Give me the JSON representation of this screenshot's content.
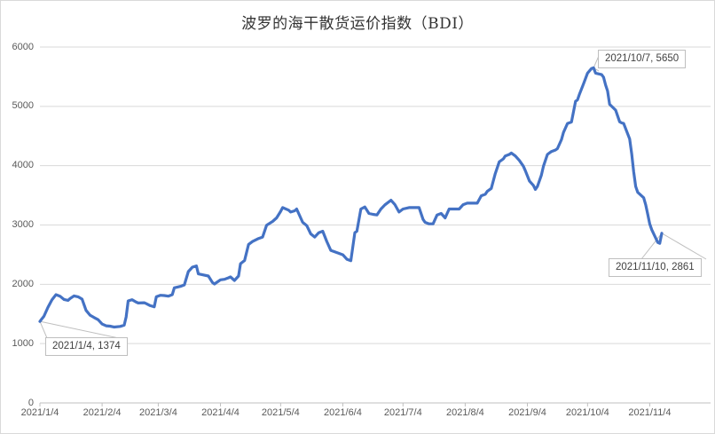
{
  "chart": {
    "line_color": "#4472C4",
    "grid_color": "#D9D9D9",
    "axis_color": "#BFBFBF",
    "tick_label_color": "#595959",
    "annotation_border_color": "#BFBFBF",
    "background": "#FFFFFF"
  },
  "chart_data": {
    "type": "line",
    "title": "波罗的海干散货运价指数（BDI）",
    "xlabel": "",
    "ylabel": "",
    "ylim": [
      0,
      6000
    ],
    "y_ticks": [
      0,
      1000,
      2000,
      3000,
      4000,
      5000,
      6000
    ],
    "x_tick_labels": [
      "2021/1/4",
      "2021/2/4",
      "2021/3/4",
      "2021/4/4",
      "2021/5/4",
      "2021/6/4",
      "2021/7/4",
      "2021/8/4",
      "2021/9/4",
      "2021/10/4",
      "2021/11/4"
    ],
    "x_range": [
      "2021/1/4",
      "2021/11/10"
    ],
    "grid": "horizontal",
    "legend": "none",
    "annotations": [
      {
        "date": "2021/1/4",
        "value": 1374,
        "label": "2021/1/4, 1374"
      },
      {
        "date": "2021/10/7",
        "value": 5650,
        "label": "2021/10/7, 5650"
      },
      {
        "date": "2021/11/10",
        "value": 2861,
        "label": "2021/11/10, 2861"
      }
    ],
    "series": [
      {
        "name": "BDI",
        "points": [
          [
            "2021/1/4",
            1374
          ],
          [
            "2021/1/5",
            1420
          ],
          [
            "2021/1/6",
            1460
          ],
          [
            "2021/1/8",
            1610
          ],
          [
            "2021/1/10",
            1740
          ],
          [
            "2021/1/12",
            1825
          ],
          [
            "2021/1/14",
            1800
          ],
          [
            "2021/1/16",
            1745
          ],
          [
            "2021/1/18",
            1730
          ],
          [
            "2021/1/19",
            1760
          ],
          [
            "2021/1/21",
            1805
          ],
          [
            "2021/1/23",
            1790
          ],
          [
            "2021/1/25",
            1750
          ],
          [
            "2021/1/27",
            1560
          ],
          [
            "2021/1/29",
            1480
          ],
          [
            "2021/1/31",
            1440
          ],
          [
            "2021/2/2",
            1403
          ],
          [
            "2021/2/4",
            1330
          ],
          [
            "2021/2/6",
            1300
          ],
          [
            "2021/2/8",
            1295
          ],
          [
            "2021/2/10",
            1280
          ],
          [
            "2021/2/13",
            1290
          ],
          [
            "2021/2/15",
            1310
          ],
          [
            "2021/2/16",
            1450
          ],
          [
            "2021/2/17",
            1720
          ],
          [
            "2021/2/19",
            1740
          ],
          [
            "2021/2/21",
            1700
          ],
          [
            "2021/2/22",
            1685
          ],
          [
            "2021/2/25",
            1690
          ],
          [
            "2021/2/26",
            1675
          ],
          [
            "2021/2/28",
            1640
          ],
          [
            "2021/3/2",
            1620
          ],
          [
            "2021/3/3",
            1790
          ],
          [
            "2021/3/5",
            1815
          ],
          [
            "2021/3/7",
            1810
          ],
          [
            "2021/3/9",
            1800
          ],
          [
            "2021/3/11",
            1825
          ],
          [
            "2021/3/12",
            1940
          ],
          [
            "2021/3/15",
            1965
          ],
          [
            "2021/3/17",
            1990
          ],
          [
            "2021/3/19",
            2215
          ],
          [
            "2021/3/21",
            2290
          ],
          [
            "2021/3/23",
            2310
          ],
          [
            "2021/3/24",
            2175
          ],
          [
            "2021/3/26",
            2160
          ],
          [
            "2021/3/29",
            2140
          ],
          [
            "2021/3/31",
            2030
          ],
          [
            "2021/4/1",
            2005
          ],
          [
            "2021/4/4",
            2075
          ],
          [
            "2021/4/6",
            2085
          ],
          [
            "2021/4/8",
            2110
          ],
          [
            "2021/4/9",
            2124
          ],
          [
            "2021/4/11",
            2065
          ],
          [
            "2021/4/13",
            2140
          ],
          [
            "2021/4/14",
            2348
          ],
          [
            "2021/4/16",
            2402
          ],
          [
            "2021/4/18",
            2672
          ],
          [
            "2021/4/20",
            2721
          ],
          [
            "2021/4/23",
            2772
          ],
          [
            "2021/4/25",
            2796
          ],
          [
            "2021/4/27",
            2995
          ],
          [
            "2021/4/30",
            3060
          ],
          [
            "2021/5/2",
            3119
          ],
          [
            "2021/5/4",
            3230
          ],
          [
            "2021/5/5",
            3294
          ],
          [
            "2021/5/8",
            3250
          ],
          [
            "2021/5/9",
            3219
          ],
          [
            "2021/5/11",
            3240
          ],
          [
            "2021/5/12",
            3269
          ],
          [
            "2021/5/15",
            3045
          ],
          [
            "2021/5/17",
            2990
          ],
          [
            "2021/5/19",
            2850
          ],
          [
            "2021/5/21",
            2796
          ],
          [
            "2021/5/23",
            2870
          ],
          [
            "2021/5/25",
            2896
          ],
          [
            "2021/5/27",
            2721
          ],
          [
            "2021/5/29",
            2572
          ],
          [
            "2021/5/31",
            2547
          ],
          [
            "2021/6/2",
            2522
          ],
          [
            "2021/6/4",
            2497
          ],
          [
            "2021/6/6",
            2423
          ],
          [
            "2021/6/8",
            2398
          ],
          [
            "2021/6/10",
            2870
          ],
          [
            "2021/6/11",
            2896
          ],
          [
            "2021/6/13",
            3269
          ],
          [
            "2021/6/15",
            3304
          ],
          [
            "2021/6/17",
            3194
          ],
          [
            "2021/6/19",
            3180
          ],
          [
            "2021/6/21",
            3169
          ],
          [
            "2021/6/23",
            3269
          ],
          [
            "2021/6/25",
            3340
          ],
          [
            "2021/6/28",
            3418
          ],
          [
            "2021/6/30",
            3343
          ],
          [
            "2021/7/2",
            3219
          ],
          [
            "2021/7/4",
            3269
          ],
          [
            "2021/7/7",
            3294
          ],
          [
            "2021/7/9",
            3294
          ],
          [
            "2021/7/12",
            3294
          ],
          [
            "2021/7/14",
            3095
          ],
          [
            "2021/7/15",
            3045
          ],
          [
            "2021/7/17",
            3020
          ],
          [
            "2021/7/19",
            3020
          ],
          [
            "2021/7/21",
            3169
          ],
          [
            "2021/7/23",
            3194
          ],
          [
            "2021/7/25",
            3119
          ],
          [
            "2021/7/27",
            3269
          ],
          [
            "2021/7/30",
            3269
          ],
          [
            "2021/8/1",
            3269
          ],
          [
            "2021/8/3",
            3343
          ],
          [
            "2021/8/5",
            3368
          ],
          [
            "2021/8/7",
            3368
          ],
          [
            "2021/8/10",
            3368
          ],
          [
            "2021/8/12",
            3493
          ],
          [
            "2021/8/14",
            3518
          ],
          [
            "2021/8/15",
            3567
          ],
          [
            "2021/8/17",
            3617
          ],
          [
            "2021/8/19",
            3866
          ],
          [
            "2021/8/21",
            4065
          ],
          [
            "2021/8/23",
            4115
          ],
          [
            "2021/8/24",
            4164
          ],
          [
            "2021/8/26",
            4189
          ],
          [
            "2021/8/27",
            4213
          ],
          [
            "2021/8/29",
            4164
          ],
          [
            "2021/8/31",
            4090
          ],
          [
            "2021/9/2",
            3990
          ],
          [
            "2021/9/3",
            3915
          ],
          [
            "2021/9/5",
            3742
          ],
          [
            "2021/9/7",
            3667
          ],
          [
            "2021/9/8",
            3600
          ],
          [
            "2021/9/9",
            3650
          ],
          [
            "2021/9/11",
            3841
          ],
          [
            "2021/9/12",
            3990
          ],
          [
            "2021/9/14",
            4189
          ],
          [
            "2021/9/16",
            4239
          ],
          [
            "2021/9/18",
            4264
          ],
          [
            "2021/9/19",
            4289
          ],
          [
            "2021/9/21",
            4438
          ],
          [
            "2021/9/22",
            4560
          ],
          [
            "2021/9/24",
            4712
          ],
          [
            "2021/9/26",
            4736
          ],
          [
            "2021/9/28",
            5085
          ],
          [
            "2021/9/29",
            5110
          ],
          [
            "2021/9/30",
            5209
          ],
          [
            "2021/10/2",
            5380
          ],
          [
            "2021/10/4",
            5560
          ],
          [
            "2021/10/6",
            5640
          ],
          [
            "2021/10/7",
            5650
          ],
          [
            "2021/10/8",
            5560
          ],
          [
            "2021/10/11",
            5535
          ],
          [
            "2021/10/12",
            5490
          ],
          [
            "2021/10/13",
            5358
          ],
          [
            "2021/10/14",
            5259
          ],
          [
            "2021/10/15",
            5035
          ],
          [
            "2021/10/18",
            4936
          ],
          [
            "2021/10/19",
            4836
          ],
          [
            "2021/10/20",
            4740
          ],
          [
            "2021/10/21",
            4720
          ],
          [
            "2021/10/22",
            4712
          ],
          [
            "2021/10/25",
            4450
          ],
          [
            "2021/10/26",
            4200
          ],
          [
            "2021/10/27",
            3900
          ],
          [
            "2021/10/28",
            3650
          ],
          [
            "2021/10/29",
            3550
          ],
          [
            "2021/11/1",
            3460
          ],
          [
            "2021/11/2",
            3340
          ],
          [
            "2021/11/3",
            3180
          ],
          [
            "2021/11/4",
            3020
          ],
          [
            "2021/11/5",
            2920
          ],
          [
            "2021/11/8",
            2705
          ],
          [
            "2021/11/9",
            2690
          ],
          [
            "2021/11/10",
            2861
          ]
        ]
      }
    ]
  }
}
